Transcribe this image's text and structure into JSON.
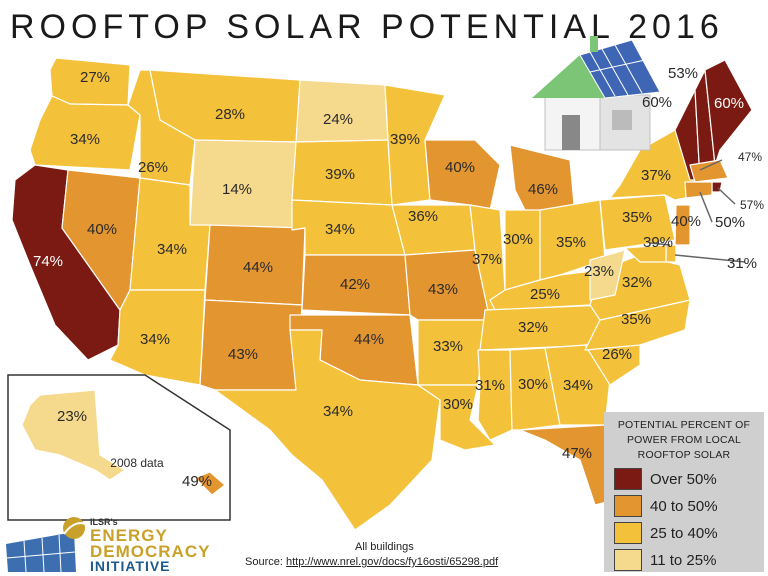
{
  "title": "ROOFTOP SOLAR POTENTIAL 2016",
  "colors": {
    "over_50": "#7a1a12",
    "p40_50": "#e39530",
    "p25_40": "#f3c13a",
    "p11_25": "#f5d98c"
  },
  "states": {
    "WA": "27%",
    "OR": "34%",
    "CA": "74%",
    "NV": "40%",
    "ID": "26%",
    "MT": "28%",
    "WY": "14%",
    "UT": "34%",
    "AZ": "34%",
    "CO": "44%",
    "NM": "43%",
    "ND": "24%",
    "SD": "39%",
    "NE": "34%",
    "KS": "42%",
    "OK": "44%",
    "TX": "34%",
    "MN": "39%",
    "IA": "36%",
    "MO": "43%",
    "AR": "33%",
    "LA": "30%",
    "WI": "40%",
    "IL": "37%",
    "MI": "46%",
    "IN": "30%",
    "OH": "35%",
    "KY": "25%",
    "TN": "32%",
    "MS": "31%",
    "AL": "30%",
    "GA": "34%",
    "FL": "47%",
    "SC": "26%",
    "NC": "35%",
    "VA": "32%",
    "WV": "23%",
    "PA": "35%",
    "NY": "37%",
    "VT": "60%",
    "NH": "53%",
    "ME": "60%",
    "MA": "47%",
    "RI": "57%",
    "CT": "50%",
    "NJ": "40%",
    "DE": "39%",
    "MD": "31%",
    "AK": "23%",
    "HI": "49%"
  },
  "inset_note": "2008 data",
  "legend": {
    "title": "POTENTIAL PERCENT OF POWER FROM LOCAL ROOFTOP SOLAR",
    "items": [
      {
        "label": "Over 50%",
        "color": "#7a1a12"
      },
      {
        "label": "40 to 50%",
        "color": "#e39530"
      },
      {
        "label": "25 to 40%",
        "color": "#f3c13a"
      },
      {
        "label": "11 to 25%",
        "color": "#f5d98c"
      }
    ]
  },
  "footer": {
    "note": "All buildings",
    "source_prefix": "Source: ",
    "source_url": "http://www.nrel.gov/docs/fy16osti/65298.pdf"
  },
  "logo": {
    "sub": "ILSR's",
    "line1": "ENERGY",
    "line2": "DEMOCRACY",
    "line3": "INITIATIVE"
  }
}
